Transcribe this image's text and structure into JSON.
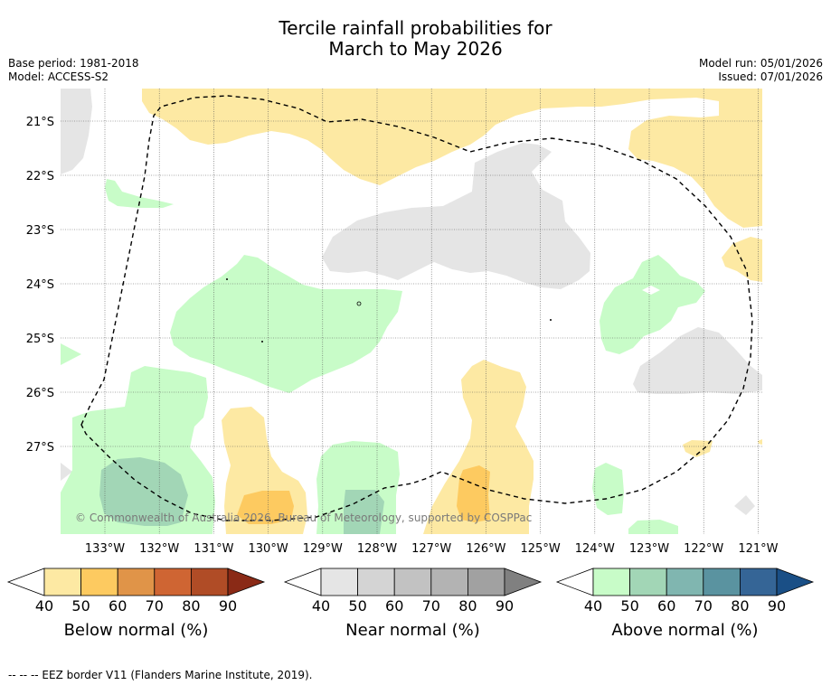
{
  "title": {
    "line1": "Tercile rainfall probabilities for",
    "line2": "March to May 2026"
  },
  "meta": {
    "base_period": "Base period: 1981-2018",
    "model": "Model: ACCESS-S2",
    "model_run": "Model run: 05/01/2026",
    "issued": "Issued: 07/01/2026"
  },
  "map": {
    "lat_labels": [
      "21°S",
      "22°S",
      "23°S",
      "24°S",
      "25°S",
      "26°S",
      "27°S"
    ],
    "lon_labels": [
      "133°W",
      "132°W",
      "131°W",
      "130°W",
      "129°W",
      "128°W",
      "127°W",
      "126°W",
      "125°W",
      "124°W",
      "123°W",
      "122°W",
      "121°W"
    ],
    "copyright": "© Commonwealth of Australia 2026, Bureau of Meteorology, supported by COSPPac"
  },
  "colors": {
    "below": [
      "#fde9a3",
      "#fdca60",
      "#e09448",
      "#cf6533",
      "#b04c26",
      "#8a2a16"
    ],
    "near": [
      "#e5e5e5",
      "#d4d4d4",
      "#c2c2c2",
      "#b3b3b3",
      "#a1a1a1",
      "#808080"
    ],
    "above": [
      "#c8fcc8",
      "#a2d6b6",
      "#80b6b0",
      "#5a93a0",
      "#356596",
      "#1a4f86"
    ]
  },
  "legends": [
    {
      "title": "Below normal (%)",
      "ticks": [
        "40",
        "50",
        "60",
        "70",
        "80",
        "90"
      ]
    },
    {
      "title": "Near normal (%)",
      "ticks": [
        "40",
        "50",
        "60",
        "70",
        "80",
        "90"
      ]
    },
    {
      "title": "Above normal (%)",
      "ticks": [
        "40",
        "50",
        "60",
        "70",
        "80",
        "90"
      ]
    }
  ],
  "footnote": "--  --  -- EEZ border V11 (Flanders Marine Institute, 2019)."
}
